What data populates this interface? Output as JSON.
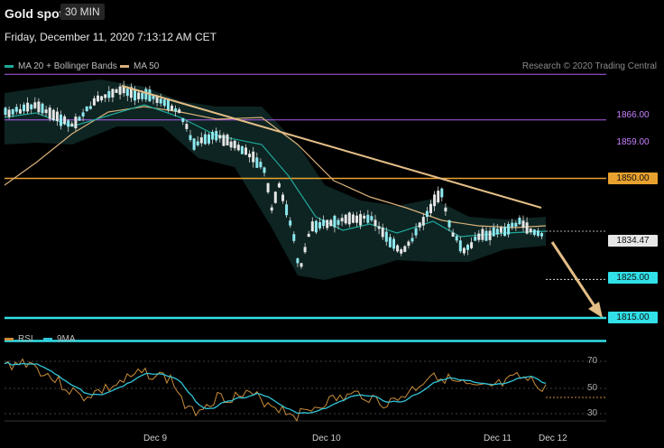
{
  "header": {
    "title": "Gold spot",
    "timeframe": "30 MIN"
  },
  "timestamp": "Friday, December 11, 2020 7:13:12 AM CET",
  "legend": {
    "ma20_label": "MA 20 + Bollinger Bands",
    "ma50_label": "MA 50",
    "credit": "Research © 2020 Trading Central"
  },
  "colors": {
    "ma20": "#1fa89a",
    "ma50": "#d9b07a",
    "resistance": "#e8a12e",
    "support": "#31e0e8",
    "pivot": "#b15cf0",
    "trend": "#e3bd86",
    "rsi": "#c98d3a",
    "rsi_ma": "#31c4d8"
  },
  "price_levels": [
    {
      "value": "1866.00",
      "kind": "pivot"
    },
    {
      "value": "1859.00",
      "kind": "pivot"
    },
    {
      "value": "1850.00",
      "kind": "resistance"
    },
    {
      "value": "1834.47",
      "kind": "current"
    },
    {
      "value": "1825.00",
      "kind": "support"
    },
    {
      "value": "1815.00",
      "kind": "support"
    }
  ],
  "rsi_panel": {
    "rsi_label": "RSI",
    "ma_label": "9MA",
    "levels": [
      "70",
      "50",
      "30"
    ]
  },
  "x_axis": [
    "Dec 9",
    "Dec 10",
    "Dec 11",
    "Dec 12"
  ]
}
